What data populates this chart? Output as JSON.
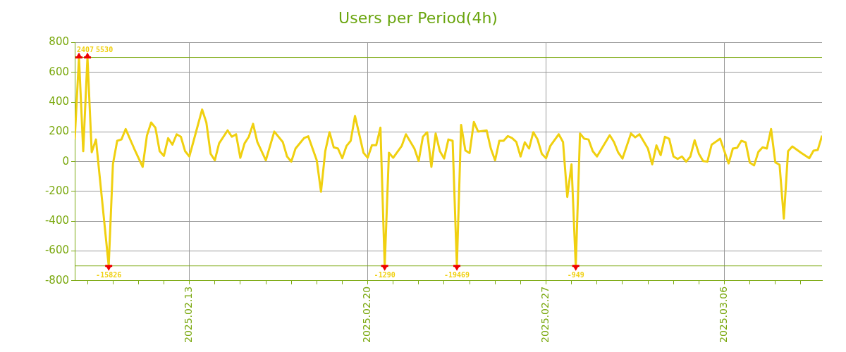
{
  "chart_data": {
    "type": "line",
    "title": "Users per Period(4h)",
    "x": [
      "2025-02-08T12:00",
      "2025-02-08T16:00",
      "2025-02-08T20:00",
      "2025-02-09T00:00",
      "2025-02-09T04:00",
      "2025-02-09T08:00",
      "2025-02-09T20:00",
      "2025-02-10T00:00",
      "2025-02-10T04:00",
      "2025-02-10T08:00",
      "2025-02-10T12:00",
      "2025-02-10T20:00",
      "2025-02-11T04:00",
      "2025-02-11T08:00",
      "2025-02-11T12:00",
      "2025-02-11T16:00",
      "2025-02-11T20:00",
      "2025-02-12T00:00",
      "2025-02-12T04:00",
      "2025-02-12T08:00",
      "2025-02-12T12:00",
      "2025-02-12T16:00",
      "2025-02-12T20:00",
      "2025-02-13T00:00",
      "2025-02-13T04:00",
      "2025-02-13T12:00",
      "2025-02-13T16:00",
      "2025-02-13T20:00",
      "2025-02-14T00:00",
      "2025-02-14T04:00",
      "2025-02-14T12:00",
      "2025-02-14T16:00",
      "2025-02-14T20:00",
      "2025-02-15T00:00",
      "2025-02-15T04:00",
      "2025-02-15T08:00",
      "2025-02-15T12:00",
      "2025-02-15T16:00",
      "2025-02-16T00:00",
      "2025-02-16T08:00",
      "2025-02-16T16:00",
      "2025-02-16T20:00",
      "2025-02-17T00:00",
      "2025-02-17T04:00",
      "2025-02-17T12:00",
      "2025-02-17T16:00",
      "2025-02-18T00:00",
      "2025-02-18T04:00",
      "2025-02-18T08:00",
      "2025-02-18T12:00",
      "2025-02-18T16:00",
      "2025-02-18T20:00",
      "2025-02-19T00:00",
      "2025-02-19T04:00",
      "2025-02-19T08:00",
      "2025-02-19T12:00",
      "2025-02-19T16:00",
      "2025-02-19T20:00",
      "2025-02-20T00:00",
      "2025-02-20T04:00",
      "2025-02-20T08:00",
      "2025-02-20T12:00",
      "2025-02-20T16:00",
      "2025-02-20T20:00",
      "2025-02-21T00:00",
      "2025-02-21T08:00",
      "2025-02-21T12:00",
      "2025-02-21T20:00",
      "2025-02-22T00:00",
      "2025-02-22T04:00",
      "2025-02-22T08:00",
      "2025-02-22T12:00",
      "2025-02-22T16:00",
      "2025-02-22T20:00",
      "2025-02-23T00:00",
      "2025-02-23T04:00",
      "2025-02-23T08:00",
      "2025-02-23T12:00",
      "2025-02-23T16:00",
      "2025-02-23T20:00",
      "2025-02-24T00:00",
      "2025-02-24T04:00",
      "2025-02-24T08:00",
      "2025-02-24T16:00",
      "2025-02-24T20:00",
      "2025-02-25T00:00",
      "2025-02-25T04:00",
      "2025-02-25T08:00",
      "2025-02-25T12:00",
      "2025-02-25T16:00",
      "2025-02-25T20:00",
      "2025-02-26T00:00",
      "2025-02-26T04:00",
      "2025-02-26T08:00",
      "2025-02-26T12:00",
      "2025-02-26T16:00",
      "2025-02-26T20:00",
      "2025-02-27T00:00",
      "2025-02-27T04:00",
      "2025-02-27T12:00",
      "2025-02-27T16:00",
      "2025-02-27T20:00",
      "2025-02-28T00:00",
      "2025-02-28T04:00",
      "2025-02-28T08:00",
      "2025-02-28T12:00",
      "2025-02-28T16:00",
      "2025-02-28T20:00",
      "2025-03-01T00:00",
      "2025-03-01T12:00",
      "2025-03-01T16:00",
      "2025-03-01T20:00",
      "2025-03-02T00:00",
      "2025-03-02T08:00",
      "2025-03-02T12:00",
      "2025-03-02T16:00",
      "2025-03-03T00:00",
      "2025-03-03T04:00",
      "2025-03-03T08:00",
      "2025-03-03T12:00",
      "2025-03-03T16:00",
      "2025-03-03T20:00",
      "2025-03-04T00:00",
      "2025-03-04T04:00",
      "2025-03-04T08:00",
      "2025-03-04T12:00",
      "2025-03-04T16:00",
      "2025-03-04T20:00",
      "2025-03-05T00:00",
      "2025-03-05T04:00",
      "2025-03-05T08:00",
      "2025-03-05T12:00",
      "2025-03-05T20:00",
      "2025-03-06T04:00",
      "2025-03-06T08:00",
      "2025-03-06T12:00",
      "2025-03-06T16:00",
      "2025-03-06T20:00",
      "2025-03-07T00:00",
      "2025-03-07T04:00",
      "2025-03-07T08:00",
      "2025-03-07T12:00",
      "2025-03-07T16:00",
      "2025-03-07T20:00",
      "2025-03-08T00:00",
      "2025-03-08T04:00",
      "2025-03-08T08:00",
      "2025-03-08T12:00",
      "2025-03-08T16:00",
      "2025-03-09T00:00",
      "2025-03-09T08:00",
      "2025-03-09T12:00",
      "2025-03-09T16:00",
      "2025-03-09T20:00"
    ],
    "series": [
      {
        "color": "#f0d010",
        "values": [
          149,
          700,
          70,
          700,
          63,
          149,
          -700,
          -16,
          140,
          149,
          219,
          88,
          -35,
          175,
          263,
          228,
          70,
          39,
          158,
          114,
          184,
          167,
          70,
          35,
          140,
          350,
          263,
          53,
          9,
          123,
          210,
          167,
          184,
          26,
          123,
          167,
          254,
          132,
          9,
          202,
          132,
          35,
          0,
          88,
          158,
          170,
          9,
          -202,
          70,
          198,
          96,
          88,
          23,
          105,
          140,
          307,
          184,
          60,
          26,
          110,
          110,
          228,
          -700,
          60,
          26,
          105,
          184,
          88,
          4,
          167,
          198,
          -35,
          189,
          70,
          21,
          149,
          140,
          -700,
          246,
          75,
          58,
          267,
          202,
          210,
          88,
          9,
          140,
          140,
          172,
          158,
          132,
          35,
          130,
          88,
          198,
          149,
          53,
          23,
          105,
          184,
          132,
          -237,
          -18,
          -700,
          189,
          154,
          149,
          70,
          35,
          178,
          132,
          61,
          21,
          189,
          163,
          184,
          88,
          -18,
          109,
          44,
          167,
          154,
          35,
          18,
          35,
          0,
          35,
          144,
          53,
          4,
          0,
          114,
          154,
          -12,
          88,
          93,
          140,
          130,
          -7,
          -25,
          65,
          96,
          88,
          219,
          -5,
          -21,
          -382,
          70,
          102,
          61,
          23,
          74,
          79,
          175
        ]
      }
    ],
    "xlim": [
      "2025-02-08T12:00",
      "2025-03-09T20:00"
    ],
    "xticks": [
      {
        "value": "2025-02-09",
        "label": null
      },
      {
        "value": "2025-02-10",
        "label": null
      },
      {
        "value": "2025-02-11",
        "label": null
      },
      {
        "value": "2025-02-12",
        "label": null
      },
      {
        "value": "2025-02-13",
        "label": "2025.02.13"
      },
      {
        "value": "2025-02-14",
        "label": null
      },
      {
        "value": "2025-02-15",
        "label": null
      },
      {
        "value": "2025-02-16",
        "label": null
      },
      {
        "value": "2025-02-17",
        "label": null
      },
      {
        "value": "2025-02-18",
        "label": null
      },
      {
        "value": "2025-02-19",
        "label": null
      },
      {
        "value": "2025-02-20",
        "label": "2025.02.20"
      },
      {
        "value": "2025-02-21",
        "label": null
      },
      {
        "value": "2025-02-22",
        "label": null
      },
      {
        "value": "2025-02-23",
        "label": null
      },
      {
        "value": "2025-02-24",
        "label": null
      },
      {
        "value": "2025-02-25",
        "label": null
      },
      {
        "value": "2025-02-26",
        "label": null
      },
      {
        "value": "2025-02-27",
        "label": "2025.02.27"
      },
      {
        "value": "2025-02-28",
        "label": null
      },
      {
        "value": "2025-03-01",
        "label": null
      },
      {
        "value": "2025-03-02",
        "label": null
      },
      {
        "value": "2025-03-03",
        "label": null
      },
      {
        "value": "2025-03-04",
        "label": null
      },
      {
        "value": "2025-03-05",
        "label": null
      },
      {
        "value": "2025-03-06",
        "label": "2025.03.06"
      },
      {
        "value": "2025-03-07",
        "label": null
      },
      {
        "value": "2025-03-08",
        "label": null
      },
      {
        "value": "2025-03-09",
        "label": null
      }
    ],
    "ylim": [
      -800,
      800
    ],
    "yticks": [
      -800,
      -600,
      -400,
      -200,
      0,
      200,
      400,
      600,
      800
    ],
    "ref_lines": [
      {
        "axis": "y",
        "value": 700,
        "color": "#7aa80e"
      },
      {
        "axis": "y",
        "value": -700,
        "color": "#7aa80e"
      }
    ],
    "annotations": [
      {
        "text": "2407",
        "x": "2025-02-08T16:00",
        "y": 700
      },
      {
        "text": "5530",
        "x": "2025-02-09T00:00",
        "y": 700
      },
      {
        "text": "-15826",
        "x": "2025-02-09T20:00",
        "y": -700
      },
      {
        "text": "-1290",
        "x": "2025-02-20T16:00",
        "y": -700
      },
      {
        "text": "-19469",
        "x": "2025-02-23T12:00",
        "y": -700
      },
      {
        "text": "-949",
        "x": "2025-02-28T04:00",
        "y": -700
      }
    ],
    "grid": true,
    "line_style": "solid"
  }
}
